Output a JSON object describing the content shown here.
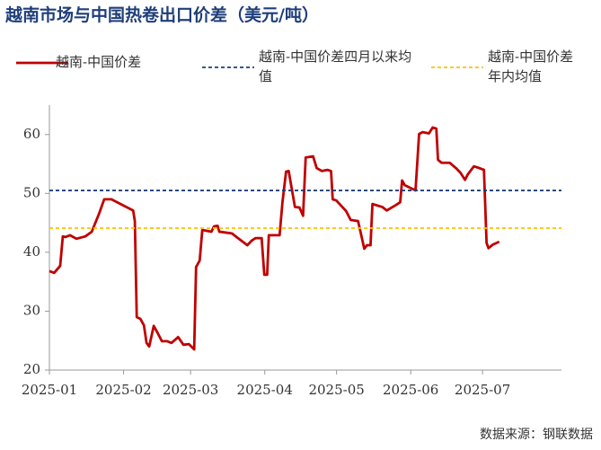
{
  "chart_data": {
    "type": "line",
    "title": "越南市场与中国热卷出口价差（美元/吨）",
    "source": "数据来源：钢联数据",
    "xlim": [
      0,
      214
    ],
    "xticks": [
      {
        "value": 0,
        "label": "2025-01"
      },
      {
        "value": 31,
        "label": "2025-02"
      },
      {
        "value": 59,
        "label": "2025-03"
      },
      {
        "value": 90,
        "label": "2025-04"
      },
      {
        "value": 120,
        "label": "2025-05"
      },
      {
        "value": 151,
        "label": "2025-06"
      },
      {
        "value": 181,
        "label": "2025-07"
      }
    ],
    "ylim": [
      20,
      65
    ],
    "yticks": [
      20,
      30,
      40,
      50,
      60
    ],
    "grid": false,
    "series": [
      {
        "name": "越南-中国价差",
        "color": "#c00000",
        "dash": false,
        "x": [
          0,
          2,
          4.5,
          5.6,
          6.8,
          8.6,
          11.3,
          15,
          17.7,
          20.7,
          22.9,
          25.9,
          35,
          35.7,
          36.5,
          38,
          39.5,
          40.6,
          41.7,
          43.6,
          45.1,
          47,
          49.2,
          51,
          53.8,
          56,
          58.3,
          60.5,
          61.3,
          62.8,
          63.9,
          67.7,
          68.8,
          70.3,
          71,
          76.3,
          78.2,
          82.7,
          84.6,
          86.1,
          88.7,
          89.8,
          91,
          91.7,
          96.2,
          97.4,
          98.9,
          100,
          102.6,
          104.5,
          106,
          107.1,
          110.2,
          111.7,
          113.9,
          116.2,
          117.7,
          118.4,
          119.9,
          124,
          125.9,
          129,
          131.6,
          132.7,
          134.2,
          135,
          139.1,
          141,
          144.7,
          146.6,
          147.4,
          148.5,
          153,
          154.5,
          156,
          158.6,
          160.2,
          161.7,
          162.4,
          163.9,
          167.3,
          169.9,
          171.8,
          173.7,
          174.8,
          177.4,
          179.7,
          181.6,
          182.7,
          183.5,
          185.3,
          188
        ],
        "values": [
          36.8,
          36.5,
          37.7,
          42.7,
          42.6,
          42.9,
          42.3,
          42.7,
          43.5,
          46.5,
          49,
          49,
          47.1,
          45.3,
          29,
          28.7,
          27.6,
          24.6,
          24,
          27.5,
          26.4,
          24.9,
          24.9,
          24.6,
          25.6,
          24.3,
          24.4,
          23.5,
          37.5,
          38.6,
          43.8,
          43.5,
          44.4,
          44.5,
          43.5,
          43.2,
          42.6,
          41.2,
          42,
          42.4,
          42.4,
          36.2,
          36.2,
          42.9,
          42.9,
          48.5,
          53.7,
          53.8,
          47.7,
          47.6,
          46.2,
          56.1,
          56.3,
          54.3,
          53.8,
          54,
          53.8,
          49,
          48.8,
          47,
          45.5,
          45.3,
          40.6,
          41.2,
          41.2,
          48.2,
          47.7,
          47.1,
          48,
          48.5,
          52.2,
          51.4,
          50.5,
          60.1,
          60.4,
          60.2,
          61.2,
          61,
          55.7,
          55.2,
          55.2,
          54.3,
          53.5,
          52.3,
          53.2,
          54.6,
          54.3,
          54,
          41.6,
          40.7,
          41.3,
          41.8
        ]
      },
      {
        "name": "越南-中国价差四月以来均值",
        "color": "#1f3e7a",
        "dash": true,
        "x": [
          0,
          214
        ],
        "values": [
          50.5,
          50.5
        ]
      },
      {
        "name": "越南-中国价差年内均值",
        "color": "#ffc000",
        "dash": true,
        "x": [
          0,
          214
        ],
        "values": [
          44.1,
          44.1
        ]
      }
    ]
  }
}
